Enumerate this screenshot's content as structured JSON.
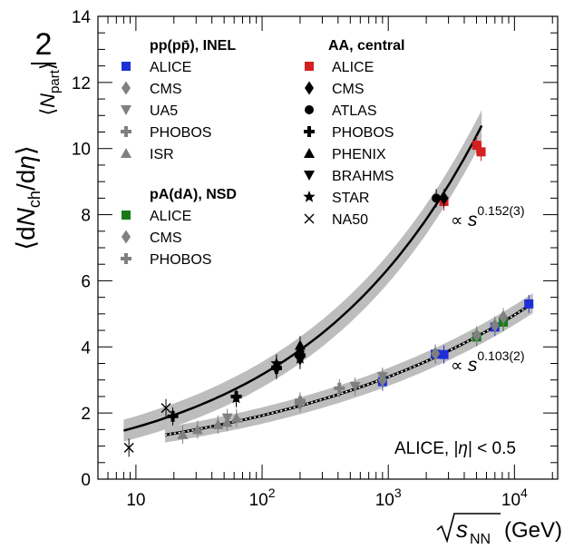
{
  "chart_data": {
    "type": "scatter",
    "xlabel": "√s_NN (GeV)",
    "ylabel": "2/⟨N_part⟩ ⟨dN_ch/dη⟩",
    "x_scale": "log",
    "xlim": [
      5,
      22000
    ],
    "ylim": [
      0,
      14
    ],
    "y_ticks": [
      0,
      2,
      4,
      6,
      8,
      10,
      12,
      14
    ],
    "x_tick_labels": [
      {
        "value": 10,
        "text": "10"
      },
      {
        "value": 100,
        "base": "10",
        "exp": "2"
      },
      {
        "value": 1000,
        "base": "10",
        "exp": "3"
      },
      {
        "value": 10000,
        "base": "10",
        "exp": "4"
      }
    ],
    "annotation": "ALICE, |η| < 0.5",
    "fits": [
      {
        "label_base": "∝ s",
        "label_exp": "0.152(3)",
        "a": 0.78,
        "b": 0.152,
        "x_range": [
          8,
          5500
        ],
        "style": "solid",
        "band": 0.35
      },
      {
        "label_base": "∝ s",
        "label_exp": "0.103(2)",
        "a": 0.745,
        "b": 0.103,
        "x_range": [
          17,
          14000
        ],
        "style": "dotted",
        "band": 0.18
      }
    ],
    "legend_groups": [
      {
        "header": "pp(pp̄), INEL",
        "entries": [
          "ALICE",
          "CMS",
          "UA5",
          "PHOBOS",
          "ISR"
        ]
      },
      {
        "header": "pA(dA), NSD",
        "entries": [
          "ALICE",
          "CMS",
          "PHOBOS"
        ]
      },
      {
        "header": "AA, central",
        "entries": [
          "ALICE",
          "CMS",
          "ATLAS",
          "PHOBOS",
          "PHENIX",
          "BRAHMS",
          "STAR",
          "NA50"
        ]
      }
    ],
    "series": [
      {
        "name": "ALICE",
        "group": "pp(pp̄), INEL",
        "marker": "square",
        "color": "#1f2fd6",
        "points": [
          [
            900,
            2.95
          ],
          [
            2360,
            3.78
          ],
          [
            2760,
            3.77
          ],
          [
            7000,
            4.6
          ],
          [
            13000,
            5.3
          ]
        ]
      },
      {
        "name": "CMS",
        "group": "pp(pp̄), INEL",
        "marker": "diamond",
        "color": "#808080",
        "points": [
          [
            900,
            3.0
          ],
          [
            2360,
            3.8
          ],
          [
            7000,
            4.65
          ]
        ]
      },
      {
        "name": "UA5",
        "group": "pp(pp̄), INEL",
        "marker": "triangle-down",
        "color": "#808080",
        "points": [
          [
            53,
            1.85
          ],
          [
            200,
            2.3
          ],
          [
            546,
            2.8
          ],
          [
            900,
            3.1
          ]
        ]
      },
      {
        "name": "PHOBOS",
        "group": "pp(pp̄), INEL",
        "marker": "cross",
        "color": "#808080",
        "points": [
          [
            200,
            2.3
          ],
          [
            410,
            2.75
          ]
        ]
      },
      {
        "name": "ISR",
        "group": "pp(pp̄), INEL",
        "marker": "triangle-up",
        "color": "#808080",
        "points": [
          [
            23.5,
            1.35
          ],
          [
            30.8,
            1.5
          ],
          [
            44.7,
            1.65
          ],
          [
            52.8,
            1.72
          ],
          [
            62.7,
            1.85
          ]
        ]
      },
      {
        "name": "ALICE",
        "group": "pA(dA), NSD",
        "marker": "square",
        "color": "#1a7a1a",
        "points": [
          [
            5020,
            4.3
          ],
          [
            8160,
            4.75
          ]
        ]
      },
      {
        "name": "CMS",
        "group": "pA(dA), NSD",
        "marker": "diamond",
        "color": "#808080",
        "points": [
          [
            5020,
            4.35
          ],
          [
            8160,
            4.9
          ]
        ]
      },
      {
        "name": "PHOBOS",
        "group": "pA(dA), NSD",
        "marker": "cross",
        "color": "#808080",
        "points": [
          [
            200,
            2.35
          ]
        ]
      },
      {
        "name": "ALICE",
        "group": "AA, central",
        "marker": "square",
        "color": "#d42020",
        "points": [
          [
            2760,
            8.4
          ],
          [
            5020,
            10.1
          ],
          [
            5440,
            9.9
          ]
        ]
      },
      {
        "name": "CMS",
        "group": "AA, central",
        "marker": "diamond",
        "color": "#000000",
        "points": [
          [
            130,
            3.4
          ],
          [
            200,
            3.85
          ],
          [
            2760,
            8.5
          ]
        ]
      },
      {
        "name": "ATLAS",
        "group": "AA, central",
        "marker": "circle",
        "color": "#000000",
        "points": [
          [
            2400,
            8.5
          ]
        ]
      },
      {
        "name": "PHOBOS",
        "group": "AA, central",
        "marker": "cross",
        "color": "#000000",
        "points": [
          [
            19.6,
            1.9
          ],
          [
            62.4,
            2.5
          ],
          [
            130,
            3.35
          ],
          [
            200,
            3.75
          ]
        ]
      },
      {
        "name": "PHENIX",
        "group": "AA, central",
        "marker": "triangle-up",
        "color": "#000000",
        "points": [
          [
            130,
            3.45
          ],
          [
            200,
            4.05
          ]
        ]
      },
      {
        "name": "BRAHMS",
        "group": "AA, central",
        "marker": "triangle-down",
        "color": "#000000",
        "points": [
          [
            130,
            3.3
          ],
          [
            200,
            3.6
          ]
        ]
      },
      {
        "name": "STAR",
        "group": "AA, central",
        "marker": "star",
        "color": "#000000",
        "points": [
          [
            62.4,
            2.45
          ],
          [
            130,
            3.5
          ],
          [
            200,
            3.65
          ]
        ]
      },
      {
        "name": "NA50",
        "group": "AA, central",
        "marker": "x",
        "color": "#000000",
        "points": [
          [
            8.8,
            0.95
          ],
          [
            17.3,
            2.15
          ]
        ]
      }
    ]
  }
}
